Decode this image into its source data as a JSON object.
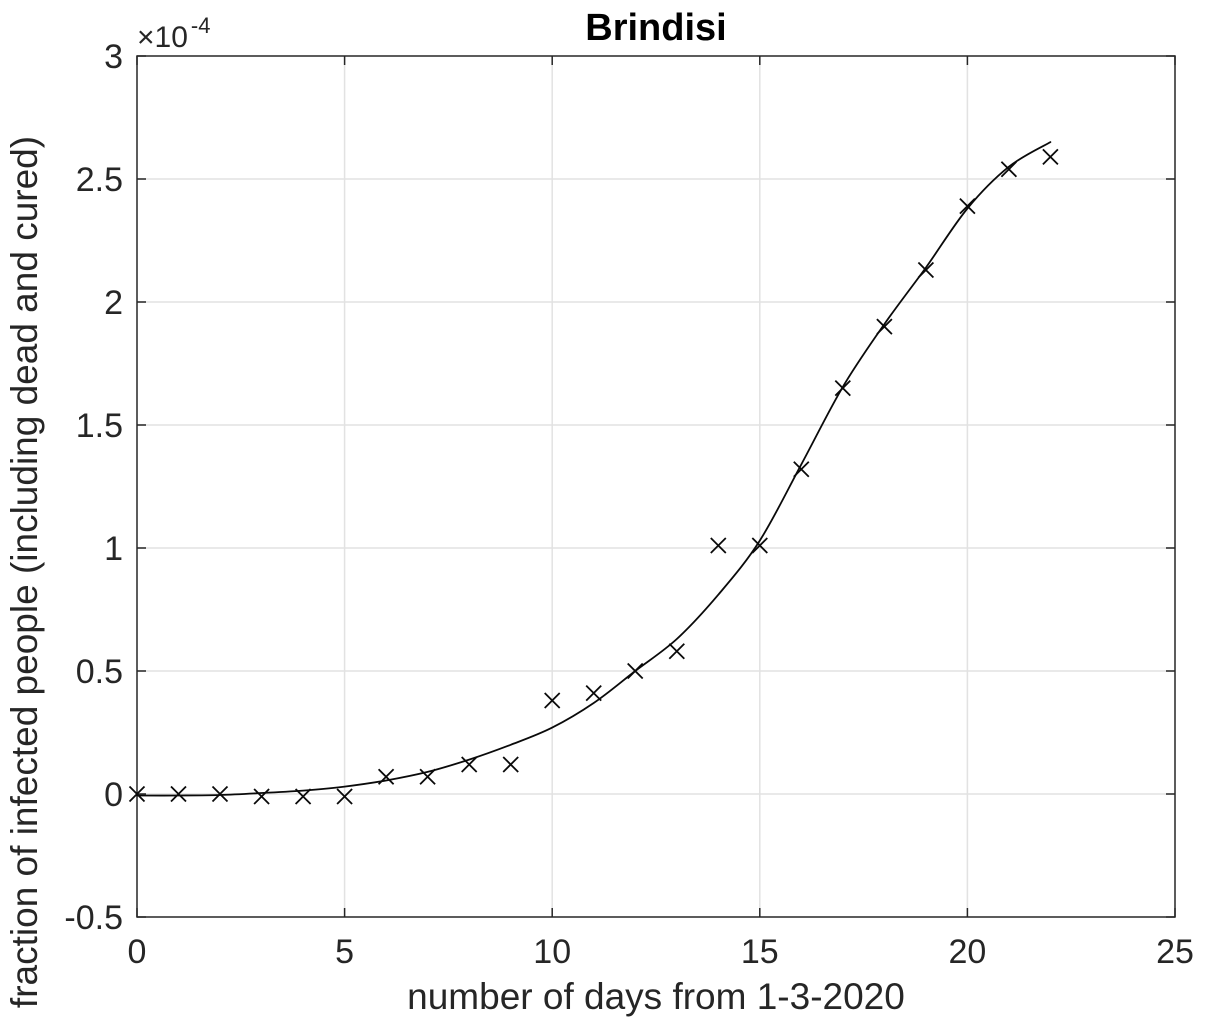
{
  "chart_data": {
    "type": "scatter",
    "title": "Brindisi",
    "xlabel": "number of days from 1-3-2020",
    "ylabel": "fraction of infected people (including dead and cured)",
    "y_scale": {
      "prefix": "×10",
      "exponent": "-4"
    },
    "y_unit_multiplier": "1e-4",
    "xlim": [
      0,
      25
    ],
    "ylim": [
      -0.5,
      3
    ],
    "xticks": [
      0,
      5,
      10,
      15,
      20,
      25
    ],
    "xtick_labels": [
      "0",
      "5",
      "10",
      "15",
      "20",
      "25"
    ],
    "yticks": [
      -0.5,
      0,
      0.5,
      1,
      1.5,
      2,
      2.5,
      3
    ],
    "ytick_labels": [
      "-0.5",
      "0",
      "0.5",
      "1",
      "1.5",
      "2",
      "2.5",
      "3"
    ],
    "grid": true,
    "series": [
      {
        "name": "observed-data",
        "type": "scatter",
        "marker": "x",
        "color": "#0a0a0a",
        "x": [
          0,
          1,
          2,
          3,
          4,
          5,
          6,
          7,
          8,
          9,
          10,
          11,
          12,
          13,
          14,
          15,
          16,
          17,
          18,
          19,
          20,
          21,
          22
        ],
        "y": [
          0.0,
          0.0,
          0.0,
          -0.01,
          -0.01,
          -0.01,
          0.07,
          0.07,
          0.12,
          0.12,
          0.38,
          0.41,
          0.5,
          0.58,
          1.01,
          1.01,
          1.32,
          1.65,
          1.9,
          2.13,
          2.39,
          2.54,
          2.59
        ]
      },
      {
        "name": "fitted-curve",
        "type": "line",
        "color": "#0a0a0a",
        "x": [
          0,
          1,
          2,
          3,
          4,
          5,
          6,
          7,
          8,
          9,
          10,
          11,
          12,
          13,
          14,
          15,
          16,
          17,
          18,
          19,
          20,
          21,
          22
        ],
        "y": [
          -0.006,
          -0.006,
          -0.004,
          0.004,
          0.014,
          0.03,
          0.055,
          0.09,
          0.14,
          0.2,
          0.27,
          0.37,
          0.5,
          0.63,
          0.81,
          1.03,
          1.34,
          1.655,
          1.91,
          2.14,
          2.38,
          2.55,
          2.65
        ]
      }
    ]
  },
  "style": {
    "background": "#ffffff",
    "grid_color": "#e2e2e2",
    "axis_color": "#262626",
    "tick_text_color": "#262626",
    "title_color": "#000000",
    "marker_color": "#0a0a0a",
    "line_color": "#0a0a0a"
  }
}
